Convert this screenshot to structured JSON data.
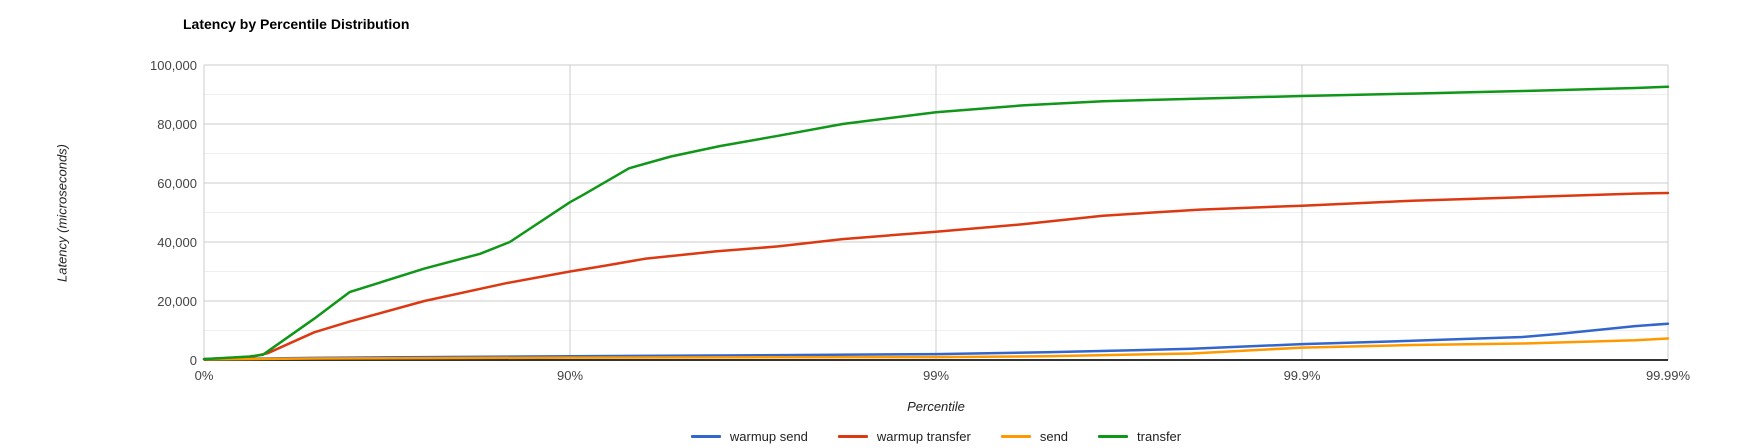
{
  "chart_data": {
    "type": "line",
    "title": "Latency by Percentile Distribution",
    "xlabel": "Percentile",
    "ylabel": "Latency (microseconds)",
    "x_scale": "logarithmic 1/(1-percentile)",
    "x_log_max": 4,
    "ylim": [
      0,
      100000
    ],
    "grid": {
      "major": true,
      "minor_y_step": 10000
    },
    "legend_position": "bottom",
    "x_ticks": [
      {
        "label": "0%",
        "log": 0
      },
      {
        "label": "90%",
        "log": 1
      },
      {
        "label": "99%",
        "log": 2
      },
      {
        "label": "99.9%",
        "log": 3
      },
      {
        "label": "99.99%",
        "log": 4
      }
    ],
    "y_ticks": [
      {
        "label": "100,000",
        "value": 100000
      },
      {
        "label": "80,000",
        "value": 80000
      },
      {
        "label": "60,000",
        "value": 60000
      },
      {
        "label": "40,000",
        "value": 40000
      },
      {
        "label": "20,000",
        "value": 20000
      },
      {
        "label": "0",
        "value": 0
      }
    ],
    "series": [
      {
        "name": "warmup send",
        "color": "#3366CC",
        "points": [
          [
            0,
            250
          ],
          [
            50,
            700
          ],
          [
            75,
            1000
          ],
          [
            90,
            1300
          ],
          [
            97,
            1600
          ],
          [
            99,
            2000
          ],
          [
            99.5,
            2600
          ],
          [
            99.8,
            3800
          ],
          [
            99.9,
            5400
          ],
          [
            99.95,
            6500
          ],
          [
            99.975,
            7800
          ],
          [
            99.98,
            8800
          ],
          [
            99.9877,
            11500
          ],
          [
            99.99,
            12300
          ]
        ]
      },
      {
        "name": "warmup transfer",
        "color": "#DC3912",
        "points": [
          [
            0,
            350
          ],
          [
            25,
            900
          ],
          [
            33,
            2300
          ],
          [
            50,
            9400
          ],
          [
            60,
            13000
          ],
          [
            75,
            20000
          ],
          [
            85,
            26000
          ],
          [
            90,
            30000
          ],
          [
            92,
            32000
          ],
          [
            93.75,
            34300
          ],
          [
            96,
            36800
          ],
          [
            97.3,
            38500
          ],
          [
            98.2,
            41000
          ],
          [
            99,
            43500
          ],
          [
            99.42,
            46000
          ],
          [
            99.65,
            48900
          ],
          [
            99.81,
            51000
          ],
          [
            99.9,
            52300
          ],
          [
            99.95,
            54000
          ],
          [
            99.975,
            55200
          ],
          [
            99.9877,
            56400
          ],
          [
            99.99,
            56600
          ]
        ]
      },
      {
        "name": "send",
        "color": "#FF9900",
        "points": [
          [
            0,
            200
          ],
          [
            50,
            500
          ],
          [
            75,
            650
          ],
          [
            90,
            800
          ],
          [
            97,
            900
          ],
          [
            99,
            1000
          ],
          [
            99.5,
            1300
          ],
          [
            99.8,
            2200
          ],
          [
            99.9,
            4200
          ],
          [
            99.95,
            5100
          ],
          [
            99.975,
            5600
          ],
          [
            99.9877,
            6700
          ],
          [
            99.99,
            7300
          ]
        ]
      },
      {
        "name": "transfer",
        "color": "#109618",
        "points": [
          [
            0,
            300
          ],
          [
            25,
            1200
          ],
          [
            31,
            1800
          ],
          [
            50,
            14000
          ],
          [
            60,
            23000
          ],
          [
            75,
            31000
          ],
          [
            82.4,
            36000
          ],
          [
            85.4,
            40000
          ],
          [
            90,
            53500
          ],
          [
            90.8,
            56000
          ],
          [
            93.1,
            65000
          ],
          [
            94.7,
            69000
          ],
          [
            96.1,
            72500
          ],
          [
            97.3,
            76000
          ],
          [
            98.2,
            80000
          ],
          [
            99,
            84000
          ],
          [
            99.42,
            86300
          ],
          [
            99.65,
            87700
          ],
          [
            99.81,
            88600
          ],
          [
            99.9,
            89500
          ],
          [
            99.95,
            90300
          ],
          [
            99.975,
            91200
          ],
          [
            99.9877,
            92200
          ],
          [
            99.99,
            92600
          ]
        ]
      }
    ]
  }
}
